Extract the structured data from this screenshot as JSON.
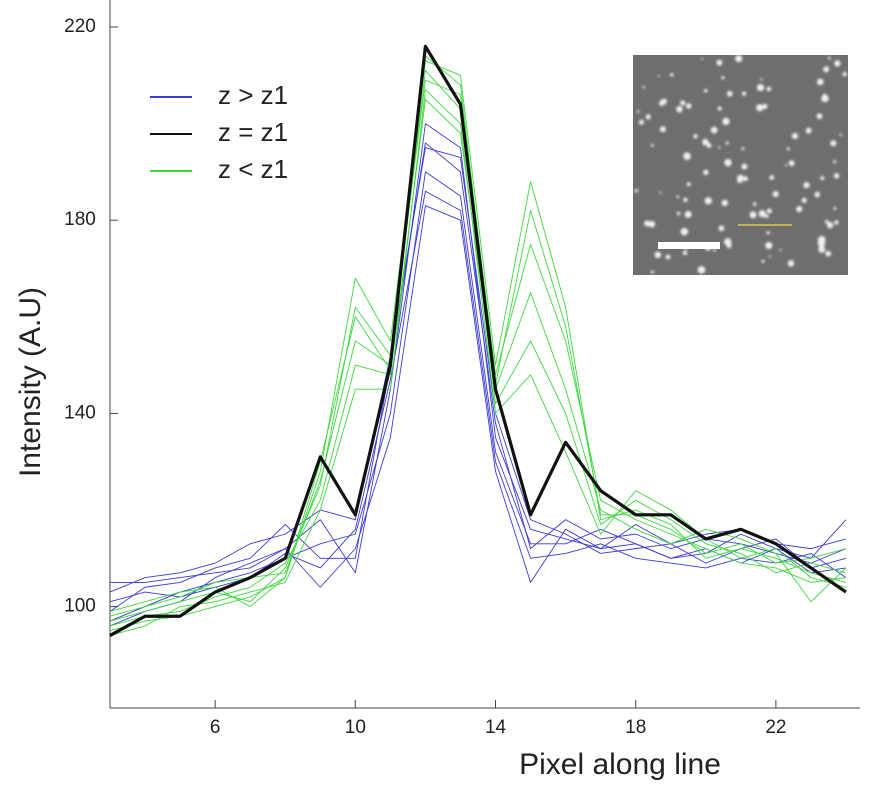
{
  "chart_data": {
    "type": "line",
    "x_label": "Pixel along line",
    "y_label": "Intensity (A.U)",
    "x": [
      3,
      4,
      5,
      6,
      7,
      8,
      9,
      10,
      11,
      12,
      13,
      14,
      15,
      16,
      17,
      18,
      19,
      20,
      21,
      22,
      23,
      24
    ],
    "xlim": [
      3,
      24.4
    ],
    "xticks": [
      6,
      10,
      14,
      18,
      22
    ],
    "ylim": [
      79,
      220
    ],
    "yticks": [
      100,
      140,
      180,
      220
    ],
    "legend": "upper left",
    "series": [
      {
        "name": "z > z1",
        "color": "#3b3bd6",
        "values": [
          [
            105,
            105,
            106,
            107,
            108,
            112,
            118,
            107,
            145,
            200,
            195,
            135,
            116,
            114,
            112,
            113,
            110,
            112,
            109,
            112,
            110,
            118
          ],
          [
            99,
            104,
            105,
            108,
            110,
            117,
            110,
            110,
            150,
            196,
            190,
            138,
            112,
            118,
            114,
            115,
            112,
            114,
            113,
            111,
            109,
            112
          ],
          [
            97,
            100,
            103,
            105,
            107,
            110,
            113,
            115,
            140,
            190,
            185,
            132,
            113,
            113,
            116,
            113,
            110,
            111,
            115,
            112,
            107,
            108
          ],
          [
            101,
            103,
            102,
            104,
            106,
            111,
            108,
            116,
            147,
            186,
            182,
            130,
            110,
            111,
            113,
            110,
            109,
            108,
            110,
            109,
            111,
            106
          ],
          [
            96,
            99,
            101,
            106,
            109,
            112,
            104,
            112,
            135,
            183,
            180,
            128,
            105,
            116,
            112,
            117,
            113,
            109,
            112,
            114,
            108,
            110
          ],
          [
            103,
            106,
            107,
            109,
            113,
            115,
            120,
            118,
            152,
            195,
            193,
            140,
            118,
            115,
            111,
            112,
            113,
            115,
            116,
            113,
            112,
            114
          ]
        ]
      },
      {
        "name": "z = z1",
        "color": "#111111",
        "values": [
          [
            94,
            98,
            98,
            103,
            106,
            110,
            131,
            119,
            150,
            216,
            204,
            145,
            119,
            134,
            124,
            119,
            119,
            114,
            116,
            113,
            108,
            103
          ]
        ]
      },
      {
        "name": "z < z1",
        "color": "#3fd83f",
        "values": [
          [
            95,
            97,
            98,
            100,
            102,
            106,
            128,
            168,
            155,
            213,
            210,
            150,
            188,
            162,
            118,
            120,
            117,
            110,
            112,
            110,
            107,
            105
          ],
          [
            97,
            99,
            101,
            103,
            101,
            108,
            125,
            162,
            152,
            209,
            206,
            148,
            175,
            155,
            122,
            118,
            115,
            112,
            109,
            108,
            105,
            106
          ],
          [
            96,
            98,
            99,
            102,
            104,
            109,
            122,
            150,
            148,
            205,
            198,
            145,
            165,
            145,
            120,
            116,
            113,
            116,
            114,
            111,
            101,
            108
          ],
          [
            98,
            100,
            102,
            105,
            106,
            107,
            126,
            155,
            150,
            211,
            203,
            142,
            155,
            140,
            117,
            122,
            118,
            113,
            111,
            107,
            109,
            107
          ],
          [
            94,
            96,
            100,
            101,
            103,
            105,
            120,
            145,
            145,
            207,
            200,
            140,
            148,
            132,
            115,
            124,
            120,
            114,
            110,
            112,
            106,
            104
          ],
          [
            99,
            101,
            103,
            104,
            100,
            106,
            130,
            160,
            149,
            214,
            208,
            146,
            182,
            158,
            119,
            119,
            116,
            111,
            113,
            109,
            110,
            112
          ]
        ]
      }
    ]
  }
}
